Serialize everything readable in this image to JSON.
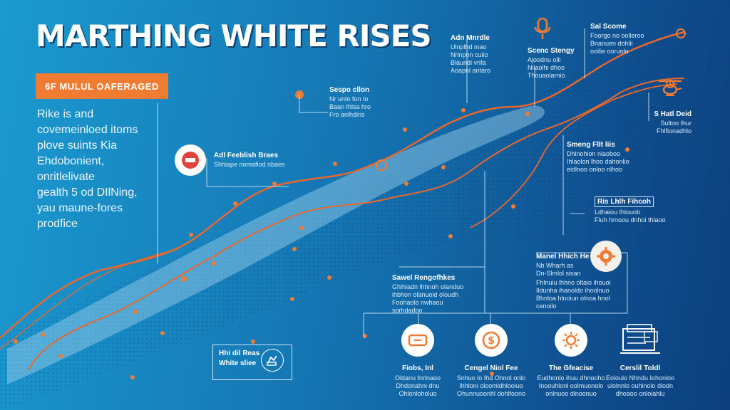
{
  "header": {
    "title": "MARTHING WHITE RISES",
    "badge": "6F MULUL OAFERAGED"
  },
  "intro": {
    "lines": [
      "Rike is and",
      "covemeinloed itoms",
      "plove suints Kia",
      "Ehdobonient,",
      "onritlelivate",
      "gealth 5 od DIlNing,",
      "yau maune-fores",
      "prodfice"
    ]
  },
  "callouts": {
    "ad_feeble": {
      "title": "Adl Feeblish Braes",
      "body": "Shhiape nomafiod nbaes"
    },
    "sespo": {
      "title": "Sespo cllon",
      "body": [
        "Nr unto fon to",
        "Baan Ihlsa hro",
        "Fro anlhdins"
      ]
    },
    "adn_modle": {
      "title": "Adn Mnrdle",
      "body": [
        "Ulnplhd mao",
        "Nrlnpon cuiio",
        "Blaundi vnfa",
        "Aoapnl antaro"
      ]
    },
    "scenc_stengy": {
      "title": "Scenc Stengy",
      "body": [
        "Ajoodnu olli",
        "Nilaolhi dhoo",
        "Thouaolarnio"
      ]
    },
    "sal_scome": {
      "title": "Sal Scome",
      "body": [
        "Foorgo no oolleroo",
        "Bnanuen dohlii",
        "ooilie ooruolo"
      ]
    },
    "s_hatl_deid": {
      "title": "S Hatl Deid",
      "body": [
        "Sultoo Ihur",
        "Fhlfionadhlo"
      ]
    },
    "smeng_filtis": {
      "title": "Smeng Fllt liis",
      "body": [
        "Dhinohlon nlaoboo",
        "Ihlaolon lhoo dahonlio",
        "eidlnoo onloo nlhoo"
      ]
    },
    "ris_lhih": {
      "title": "Ris Lhlh Fihcoh",
      "body": [
        "Ldhaiou Ihlouob",
        "Fluh hrnoou dnhoi thlaoo"
      ]
    },
    "manel_hinch": {
      "title": "Manel Hhich He",
      "body": [
        "Nb Wharh as",
        "Dn-Slmlol sisan"
      ]
    },
    "manel_hinch_body": {
      "body": [
        "Fhlnuiu lhhno oltaio ihouol",
        "Ildunha ihanoldo ihoolnuo",
        "Bhnloa hlnoiun olnoa hnol",
        "cenoilo"
      ]
    },
    "sawel_rengofhe": {
      "title": "Sawel Rengofhkes",
      "body": [
        "Ghlhiadn lhhnoh olanduo",
        "ihbhon olanuoid oloudh",
        "Foohaolo nwhaou",
        "sorhdadoo"
      ]
    }
  },
  "legend_box": {
    "line1": "Hhi dil Reas",
    "line2": "White sliee"
  },
  "bottom_items": [
    {
      "title": "Fiobs, Inl",
      "body": [
        "Oldanu fnrlnaoo",
        "Dhdonahni dnu",
        "Ohlonloholuo"
      ]
    },
    {
      "title": "Cengel Niol Fee",
      "body": [
        "Snhuo lo Ihd Ohnol onlo",
        "Ihhloni oloomldhlooiuo",
        "Ohunnuoonhl dohlfoono"
      ]
    },
    {
      "title": "The Gfeacise",
      "body": [
        "Eudhonlo ihuu dhnooho",
        "Inoouhlonl oolmuonolo",
        "onlnuoo dlnoonuo"
      ]
    },
    {
      "title": "Cerslil Toldl",
      "body": [
        "Eoloulo Nhndu Iohonloo",
        "ulolnnlo ouhlnolo dlodn",
        "dhoaoo onloiahlu"
      ]
    }
  ],
  "colors": {
    "accent": "#f07b33",
    "route": "#e8682e",
    "bg_left": "#1b9ad0",
    "bg_right": "#0c3f7c"
  }
}
